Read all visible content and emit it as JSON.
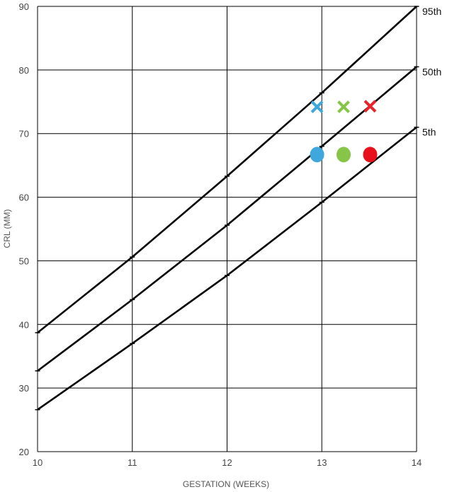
{
  "chart_data": {
    "type": "line",
    "title": "",
    "xlabel": "GESTATION (WEEKS)",
    "ylabel": "CRL (MM)",
    "xlim": [
      10,
      14
    ],
    "ylim": [
      20,
      90
    ],
    "x_ticks": [
      10,
      11,
      12,
      13,
      14
    ],
    "y_ticks": [
      20,
      30,
      40,
      50,
      60,
      70,
      80,
      90
    ],
    "grid": true,
    "series": [
      {
        "name": "95th",
        "color": "#000000",
        "points": [
          [
            10,
            38.7
          ],
          [
            11,
            50.6
          ],
          [
            12,
            63.3
          ],
          [
            13,
            76.4
          ],
          [
            14,
            90.0
          ]
        ]
      },
      {
        "name": "50th",
        "color": "#000000",
        "points": [
          [
            10,
            32.7
          ],
          [
            11,
            43.9
          ],
          [
            12,
            55.6
          ],
          [
            13,
            68.0
          ],
          [
            14,
            80.5
          ]
        ]
      },
      {
        "name": "5th",
        "color": "#000000",
        "points": [
          [
            10,
            26.6
          ],
          [
            11,
            37.0
          ],
          [
            12,
            47.7
          ],
          [
            13,
            59.2
          ],
          [
            14,
            71.0
          ]
        ]
      }
    ],
    "markers": [
      {
        "shape": "x",
        "color": "#3fa7dc",
        "x": 12.95,
        "y": 74.2
      },
      {
        "shape": "x",
        "color": "#86c548",
        "x": 13.23,
        "y": 74.2
      },
      {
        "shape": "x",
        "color": "#e8242a",
        "x": 13.51,
        "y": 74.3
      },
      {
        "shape": "dot",
        "color": "#3fa7dc",
        "x": 12.95,
        "y": 66.7
      },
      {
        "shape": "dot",
        "color": "#86c548",
        "x": 13.23,
        "y": 66.7
      },
      {
        "shape": "dot",
        "color": "#e8101a",
        "x": 13.51,
        "y": 66.7
      }
    ]
  }
}
